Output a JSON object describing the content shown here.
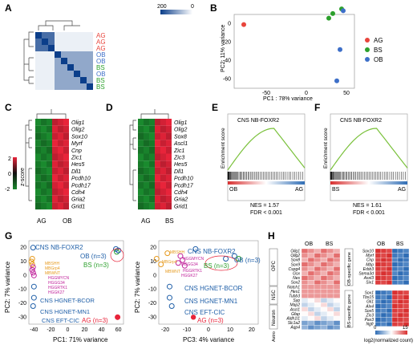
{
  "panels": {
    "a": "A",
    "b": "B",
    "c": "C",
    "d": "D",
    "e": "E",
    "f": "F",
    "g": "G",
    "h": "H"
  },
  "colors": {
    "AG": "#e8453c",
    "BS": "#2ca02c",
    "OB": "#3d6fc8",
    "heat_low": "#1a8a2e",
    "heat_high": "#e8243a",
    "h_low": "#2f6db5",
    "h_high": "#d83030",
    "gsea_line": "#7ac13b",
    "g_blue": "#1f5fa8",
    "g_orange": "#e69a1e",
    "g_magenta": "#c0239b"
  },
  "panel_a": {
    "scale_labels": [
      "200",
      "0"
    ],
    "row_labels": [
      "AG",
      "AG",
      "AG",
      "OB",
      "OB",
      "BS",
      "OB",
      "BS",
      "BS"
    ]
  },
  "panel_b": {
    "ylabel": "PC2: 11% variance",
    "xlabel": "PC1 : 78% variance",
    "yticks": [
      "0",
      "-20",
      "-40",
      "-60"
    ],
    "xticks": [
      "-50",
      "0",
      "50"
    ],
    "legend": [
      "AG",
      "BS",
      "OB"
    ]
  },
  "panel_c": {
    "genes": [
      "Olig1",
      "Olig2",
      "Sox10",
      "Myrf",
      "Cnp",
      "Zic1",
      "Hes5",
      "Dll1",
      "Pcdh10",
      "Pcdh17",
      "Cdh4",
      "Gria2",
      "Grid1"
    ],
    "groups": [
      "AG",
      "OB"
    ],
    "scale_label": "z-score",
    "scale_ticks": [
      "2",
      "0",
      "-2"
    ]
  },
  "panel_d": {
    "genes": [
      "Olig1",
      "Olig2",
      "Sox8",
      "Ascl1",
      "Zic1",
      "Zic3",
      "Hes5",
      "Dll1",
      "Pcdh10",
      "Pcdh17",
      "Cdh4",
      "Gria2",
      "Grid1"
    ],
    "groups": [
      "AG",
      "BS"
    ]
  },
  "panel_e": {
    "title": "CNS NB-FOXR2",
    "ylabel": "Enrichment score",
    "left_group": "OB",
    "right_group": "AG",
    "nes": "NES = 1.57",
    "fdr": "FDR < 0.001"
  },
  "panel_f": {
    "title": "CNS NB-FOXR2",
    "ylabel": "Enrichment score",
    "left_group": "BS",
    "right_group": "AG",
    "nes": "NES = 1.61",
    "fdr": "FDR < 0.001"
  },
  "panel_g1": {
    "ylabel": "PC2: 7% variance",
    "xlabel": "PC1: 71% variance",
    "yticks": [
      "20",
      "10",
      "0",
      "-10",
      "-20",
      "-30"
    ],
    "xticks": [
      "-40",
      "-20",
      "0",
      "20",
      "40",
      "60"
    ],
    "labels": {
      "nb": "CNS NB-FOXR2",
      "ob": "OB (n=3)",
      "bs": "BS (n=3)",
      "bcor": "CNS HGNET-BCOR",
      "mn1": "CNS HGNET-MN1",
      "cic": "CNS EFT-CIC",
      "ag": "AG (n=3)"
    },
    "mini_labels": [
      "MBSHH",
      "MBGrp4",
      "MBWNT",
      "HGGMYCN",
      "HGGG34",
      "HGGRTK1",
      "HGGK27"
    ]
  },
  "panel_g2": {
    "ylabel": "PC2: 7% variance",
    "xlabel": "PC3: 4% variance",
    "yticks": [
      "20",
      "10",
      "0",
      "-10",
      "-20",
      "-30"
    ],
    "xticks": [
      "-20",
      "-10",
      "0",
      "10",
      "20"
    ],
    "labels": {
      "nb": "CNS NB-FOXR2",
      "ob": "OB (n=3)",
      "bs": "BS (n=3)",
      "bcor": "CNS HGNET-BCOR",
      "mn1": "CNS HGNET-MN1",
      "cic": "CNS EFT-CIC",
      "ag": "AG (n=3)"
    },
    "mini_labels": [
      "MBSHH",
      "MBGrp4",
      "MBWNT",
      "HGGMYCN",
      "HGGG34",
      "HGGRTK1",
      "HGGK27"
    ]
  },
  "panel_h": {
    "groups": [
      "OB",
      "BS"
    ],
    "categories": [
      "OPC",
      "NSC",
      "Neuron",
      "Astro"
    ],
    "genes_main": [
      "Olig1",
      "Olig2",
      "Sox8",
      "Sox9",
      "Cspg4",
      "Gsx",
      "Nes",
      "Sox2",
      "Notch1",
      "Hes1",
      "Tubb3",
      "Syp",
      "Map2",
      "Ascl1",
      "Gfap",
      "Aldh1l1",
      "Slc1a2",
      "Aqp4"
    ],
    "side_category_1": "OB-specific gene",
    "genes_ob": [
      "Sox10",
      "Myrf",
      "Cnp",
      "Mbp",
      "Erbb3",
      "Sema3d",
      "Asxl3",
      "Six1"
    ],
    "side_category_2": "BS-specific gene",
    "genes_bs": [
      "Sox1",
      "Tbx15",
      "Gli1",
      "Alx4",
      "Sox5",
      "Zic3",
      "Pax3",
      "Ngfr"
    ],
    "scale_ticks": [
      "0",
      "15"
    ],
    "scale_label": "log2(normalized count)"
  }
}
